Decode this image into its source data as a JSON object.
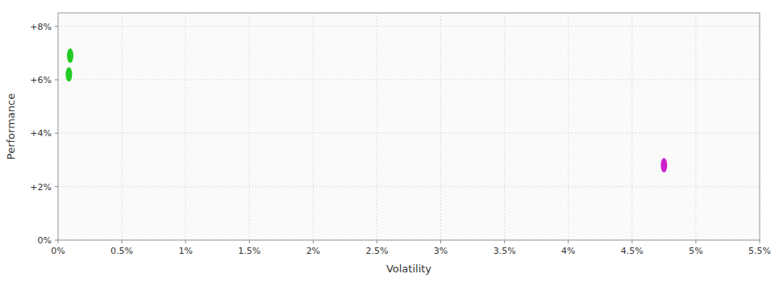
{
  "chart_data": {
    "type": "scatter",
    "xlabel": "Volatility",
    "ylabel": "Performance",
    "x": [
      0.00095,
      0.00085,
      0.0475
    ],
    "values": [
      0.069,
      0.062,
      0.028
    ],
    "colors": [
      "#22cc22",
      "#22cc22",
      "#cc22cc"
    ],
    "marker": "ellipse",
    "xlim": [
      0,
      0.055
    ],
    "ylim": [
      0,
      0.085
    ],
    "xticks": [
      {
        "value": 0,
        "label": "0%"
      },
      {
        "value": 0.005,
        "label": "0.5%"
      },
      {
        "value": 0.01,
        "label": "1%"
      },
      {
        "value": 0.015,
        "label": "1.5%"
      },
      {
        "value": 0.02,
        "label": "2%"
      },
      {
        "value": 0.025,
        "label": "2.5%"
      },
      {
        "value": 0.03,
        "label": "3%"
      },
      {
        "value": 0.035,
        "label": "3.5%"
      },
      {
        "value": 0.04,
        "label": "4%"
      },
      {
        "value": 0.045,
        "label": "4.5%"
      },
      {
        "value": 0.05,
        "label": "5%"
      },
      {
        "value": 0.055,
        "label": "5.5%"
      }
    ],
    "yticks": [
      {
        "value": 0,
        "label": "0%"
      },
      {
        "value": 0.02,
        "label": "+2%"
      },
      {
        "value": 0.04,
        "label": "+4%"
      },
      {
        "value": 0.06,
        "label": "+6%"
      },
      {
        "value": 0.08,
        "label": "+8%"
      }
    ],
    "grid": true
  }
}
